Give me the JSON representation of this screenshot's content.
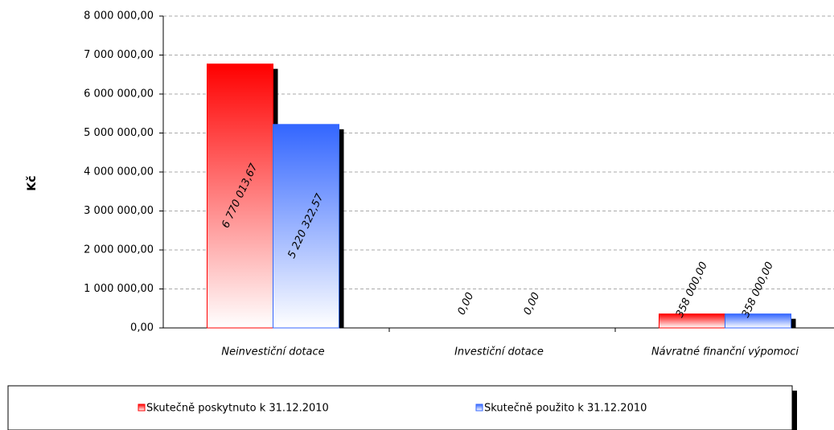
{
  "chart_data": {
    "type": "bar",
    "y_label": "Kč",
    "categories": [
      "Neinvestiční dotace",
      "Investiční dotace",
      "Návratné finanční výpomoci"
    ],
    "series": [
      {
        "name": "Skutečně poskytnuto k 31.12.2010",
        "color": "#ff0000",
        "values": [
          6770013.67,
          0,
          358000
        ],
        "value_labels": [
          "6 770 013,67",
          "0,00",
          "358 000,00"
        ]
      },
      {
        "name": "Skutečně použito k 31.12.2010",
        "color": "#3366ff",
        "values": [
          5220322.57,
          0,
          358000
        ],
        "value_labels": [
          "5 220 322,57",
          "0,00",
          "358 000,00"
        ]
      }
    ],
    "ylim": [
      0,
      8000000
    ],
    "yticks": [
      {
        "value": 0,
        "label": "0,00"
      },
      {
        "value": 1000000,
        "label": "1 000 000,00"
      },
      {
        "value": 2000000,
        "label": "2 000 000,00"
      },
      {
        "value": 3000000,
        "label": "3 000 000,00"
      },
      {
        "value": 4000000,
        "label": "4 000 000,00"
      },
      {
        "value": 5000000,
        "label": "5 000 000,00"
      },
      {
        "value": 6000000,
        "label": "6 000 000,00"
      },
      {
        "value": 7000000,
        "label": "7 000 000,00"
      },
      {
        "value": 8000000,
        "label": "8 000 000,00"
      }
    ],
    "grid": true,
    "legend": "bottom"
  }
}
